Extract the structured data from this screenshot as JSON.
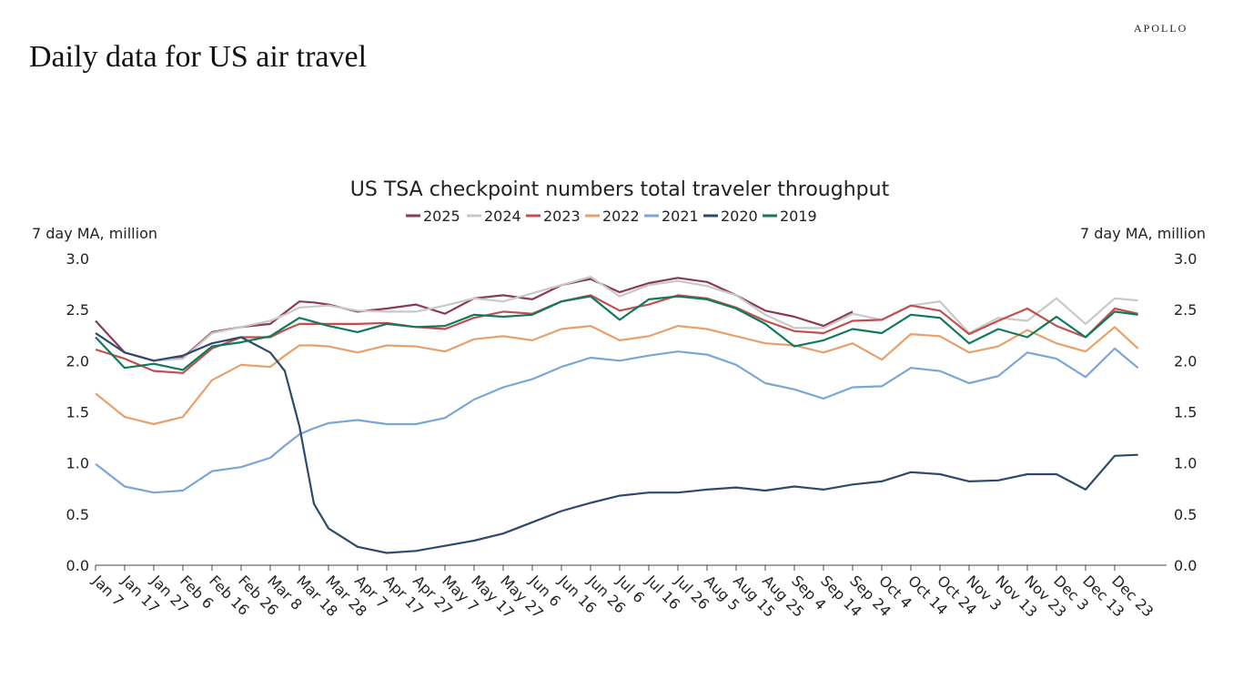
{
  "brand": "APOLLO",
  "page_title": "Daily data for US air travel",
  "chart_data": {
    "type": "line",
    "title": "US TSA checkpoint numbers total traveler throughput",
    "ylabel_left": "7 day MA, million",
    "ylabel_right": "7 day MA, million",
    "ylim": [
      0,
      3.0
    ],
    "yticks": [
      "0.0",
      "0.5",
      "1.0",
      "1.5",
      "2.0",
      "2.5",
      "3.0"
    ],
    "ytick_values": [
      0,
      0.5,
      1.0,
      1.5,
      2.0,
      2.5,
      3.0
    ],
    "xticks": [
      "Jan 7",
      "Jan 17",
      "Jan 27",
      "Feb 6",
      "Feb 16",
      "Feb 26",
      "Mar 8",
      "Mar 18",
      "Mar 28",
      "Apr 7",
      "Apr 17",
      "Apr 27",
      "May 7",
      "May 17",
      "May 27",
      "Jun 6",
      "Jun 16",
      "Jun 26",
      "Jul 6",
      "Jul 16",
      "Jul 26",
      "Aug 5",
      "Aug 15",
      "Aug 25",
      "Sep 4",
      "Sep 14",
      "Sep 24",
      "Oct 4",
      "Oct 14",
      "Oct 24",
      "Nov 3",
      "Nov 13",
      "Nov 23",
      "Dec 3",
      "Dec 13",
      "Dec 23"
    ],
    "grid": false,
    "legend_placement": "top",
    "x": [
      "Jan 7",
      "Jan 17",
      "Jan 27",
      "Feb 6",
      "Feb 16",
      "Feb 26",
      "Mar 8",
      "Mar 13",
      "Mar 18",
      "Mar 23",
      "Mar 28",
      "Apr 7",
      "Apr 17",
      "Apr 27",
      "May 7",
      "May 17",
      "May 27",
      "Jun 6",
      "Jun 16",
      "Jun 26",
      "Jul 6",
      "Jul 16",
      "Jul 26",
      "Aug 5",
      "Aug 15",
      "Aug 25",
      "Sep 4",
      "Sep 14",
      "Sep 24",
      "Oct 4",
      "Oct 14",
      "Oct 24",
      "Nov 3",
      "Nov 13",
      "Nov 23",
      "Dec 3",
      "Dec 13",
      "Dec 23",
      "Dec 31"
    ],
    "series": [
      {
        "name": "2025",
        "color": "#8b3a52",
        "values": [
          2.39,
          2.08,
          2.0,
          2.03,
          2.28,
          2.33,
          2.36,
          2.47,
          2.58,
          2.57,
          2.55,
          2.48,
          2.51,
          2.55,
          2.46,
          2.61,
          2.64,
          2.6,
          2.74,
          2.8,
          2.67,
          2.76,
          2.81,
          2.77,
          2.64,
          2.49,
          2.43,
          2.34,
          2.48,
          null,
          null,
          null,
          null,
          null,
          null,
          null,
          null,
          null,
          null
        ]
      },
      {
        "name": "2024",
        "color": "#c8c8c8",
        "values": [
          2.27,
          2.08,
          2.0,
          2.02,
          2.27,
          2.33,
          2.39,
          2.45,
          2.52,
          2.53,
          2.54,
          2.49,
          2.48,
          2.48,
          2.54,
          2.61,
          2.58,
          2.66,
          2.74,
          2.82,
          2.63,
          2.74,
          2.78,
          2.73,
          2.64,
          2.45,
          2.32,
          2.32,
          2.46,
          2.4,
          2.54,
          2.58,
          2.27,
          2.42,
          2.39,
          2.61,
          2.36,
          2.61,
          2.59
        ]
      },
      {
        "name": "2023",
        "color": "#c0504d",
        "values": [
          2.11,
          2.02,
          1.9,
          1.88,
          2.12,
          2.23,
          2.23,
          2.3,
          2.36,
          2.36,
          2.36,
          2.36,
          2.37,
          2.33,
          2.31,
          2.42,
          2.48,
          2.46,
          2.58,
          2.64,
          2.49,
          2.55,
          2.64,
          2.61,
          2.52,
          2.39,
          2.29,
          2.27,
          2.39,
          2.4,
          2.54,
          2.49,
          2.26,
          2.39,
          2.51,
          2.34,
          2.23,
          2.51,
          2.46
        ]
      },
      {
        "name": "2022",
        "color": "#e8a06a",
        "values": [
          1.68,
          1.45,
          1.38,
          1.45,
          1.81,
          1.96,
          1.94,
          2.05,
          2.15,
          2.15,
          2.14,
          2.08,
          2.15,
          2.14,
          2.09,
          2.21,
          2.24,
          2.2,
          2.31,
          2.34,
          2.2,
          2.24,
          2.34,
          2.31,
          2.24,
          2.17,
          2.15,
          2.08,
          2.17,
          2.01,
          2.26,
          2.24,
          2.08,
          2.14,
          2.3,
          2.17,
          2.09,
          2.33,
          2.12
        ]
      },
      {
        "name": "2021",
        "color": "#7aa6d6",
        "values": [
          0.99,
          0.77,
          0.71,
          0.73,
          0.92,
          0.96,
          1.05,
          1.17,
          1.28,
          1.34,
          1.39,
          1.42,
          1.38,
          1.38,
          1.44,
          1.62,
          1.74,
          1.82,
          1.94,
          2.03,
          2.0,
          2.05,
          2.09,
          2.06,
          1.96,
          1.78,
          1.72,
          1.63,
          1.74,
          1.75,
          1.93,
          1.9,
          1.78,
          1.85,
          2.08,
          2.02,
          1.84,
          2.12,
          1.93
        ]
      },
      {
        "name": "2020",
        "color": "#2e4a6b",
        "values": [
          2.27,
          2.08,
          2.0,
          2.05,
          2.17,
          2.23,
          2.08,
          1.9,
          1.36,
          0.6,
          0.36,
          0.18,
          0.12,
          0.14,
          0.19,
          0.24,
          0.31,
          0.42,
          0.53,
          0.61,
          0.68,
          0.71,
          0.71,
          0.74,
          0.76,
          0.73,
          0.77,
          0.74,
          0.79,
          0.82,
          0.91,
          0.89,
          0.82,
          0.83,
          0.89,
          0.89,
          0.74,
          1.07,
          1.08
        ]
      },
      {
        "name": "2019",
        "color": "#0f7a5a",
        "values": [
          2.23,
          1.93,
          1.97,
          1.91,
          2.14,
          2.18,
          2.24,
          2.33,
          2.42,
          2.38,
          2.34,
          2.28,
          2.36,
          2.33,
          2.34,
          2.45,
          2.43,
          2.45,
          2.58,
          2.63,
          2.4,
          2.6,
          2.63,
          2.6,
          2.51,
          2.36,
          2.14,
          2.2,
          2.31,
          2.27,
          2.45,
          2.42,
          2.17,
          2.31,
          2.23,
          2.43,
          2.23,
          2.48,
          2.45
        ]
      }
    ]
  }
}
